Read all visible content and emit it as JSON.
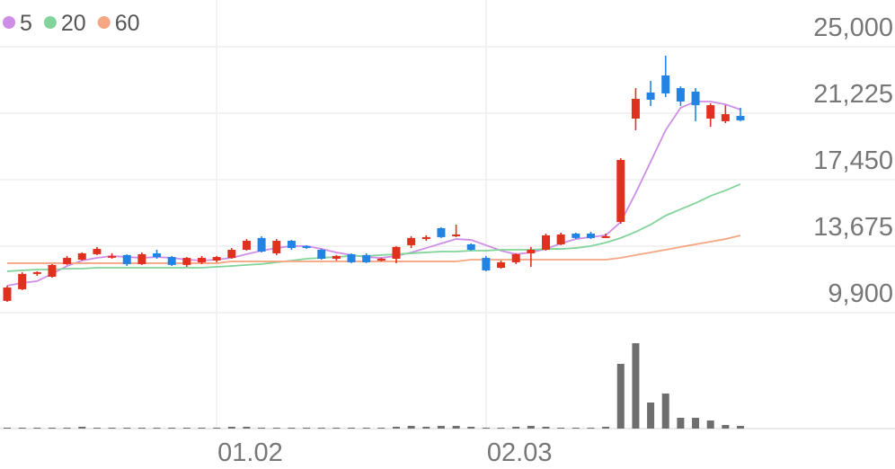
{
  "chart_data": {
    "type": "candlestick",
    "categories": [
      null,
      null,
      null,
      null,
      null,
      null,
      null,
      null,
      null,
      null,
      null,
      null,
      null,
      null,
      "01.02",
      null,
      null,
      null,
      null,
      null,
      null,
      null,
      null,
      null,
      null,
      null,
      null,
      null,
      null,
      null,
      null,
      null,
      "02.03",
      null,
      null,
      null,
      null,
      null,
      null,
      null,
      null,
      null,
      null,
      null,
      null,
      null,
      null,
      null,
      null,
      null
    ],
    "open": [
      10570,
      11230,
      12100,
      11940,
      12660,
      12910,
      13220,
      13060,
      13170,
      12660,
      13270,
      13060,
      12610,
      12760,
      12860,
      13010,
      13470,
      14140,
      13270,
      13980,
      13680,
      13470,
      12960,
      13220,
      13170,
      12860,
      12960,
      13730,
      14080,
      14700,
      14290,
      13780,
      13010,
      12450,
      12760,
      13270,
      13470,
      13780,
      14390,
      14390,
      14190,
      15050,
      20920,
      22400,
      23370,
      22650,
      22450,
      20920,
      20770,
      21070
    ],
    "close": [
      11330,
      12100,
      12200,
      12610,
      13010,
      13270,
      13520,
      13120,
      12660,
      13220,
      13060,
      12610,
      13010,
      13010,
      13060,
      13470,
      13980,
      13370,
      13980,
      13570,
      13570,
      12960,
      13120,
      12760,
      12760,
      12960,
      13630,
      14140,
      14190,
      14190,
      14340,
      13470,
      12300,
      12760,
      13220,
      13470,
      14290,
      14340,
      14140,
      14140,
      14240,
      18570,
      22040,
      21990,
      22350,
      21890,
      21680,
      21680,
      21170,
      20820
    ],
    "high": [
      11430,
      12200,
      12250,
      12660,
      13120,
      13320,
      13630,
      13270,
      13220,
      13320,
      13470,
      13120,
      13060,
      13120,
      13120,
      13570,
      14080,
      14240,
      14080,
      14030,
      13730,
      13520,
      13170,
      13270,
      13270,
      13010,
      13680,
      14240,
      14290,
      14750,
      14900,
      13830,
      13120,
      12860,
      13270,
      13630,
      14390,
      14440,
      14440,
      14490,
      14390,
      18670,
      22650,
      23060,
      24490,
      22750,
      22650,
      21790,
      21680,
      21530
    ],
    "low": [
      10510,
      11180,
      11990,
      11890,
      12610,
      12860,
      13170,
      12960,
      12550,
      12610,
      12960,
      12550,
      12500,
      12660,
      12760,
      12960,
      13420,
      13320,
      13170,
      13470,
      13520,
      12910,
      12860,
      12710,
      12710,
      12810,
      12710,
      13570,
      13980,
      14140,
      14190,
      13420,
      12250,
      12400,
      12660,
      12500,
      13420,
      13730,
      14080,
      14080,
      14140,
      14950,
      20260,
      21630,
      22140,
      21630,
      20770,
      20460,
      20660,
      20770
    ],
    "up_color": "#e0301e",
    "down_color": "#2383e2",
    "volume": [
      1,
      1,
      1,
      1,
      1,
      2,
      1,
      1,
      1,
      1,
      1,
      1,
      1,
      1,
      1,
      2,
      2,
      1,
      1,
      1,
      1,
      1,
      1,
      1,
      1,
      1,
      2,
      3,
      2,
      3,
      3,
      2,
      1,
      1,
      2,
      3,
      2,
      1,
      1,
      1,
      2,
      72,
      95,
      29,
      39,
      12,
      12,
      9,
      4,
      3
    ],
    "volume_color": "#6e6e6e",
    "series": [
      {
        "name": "5",
        "color": "#cf8ee6",
        "values": [
          11430,
          11590,
          11690,
          12100,
          12550,
          12860,
          13010,
          13120,
          13060,
          13010,
          13060,
          13010,
          12910,
          12860,
          12910,
          13010,
          13220,
          13420,
          13570,
          13680,
          13680,
          13520,
          13320,
          13170,
          13060,
          13010,
          13120,
          13320,
          13570,
          13830,
          14080,
          14030,
          13730,
          13420,
          13220,
          13320,
          13520,
          13830,
          14080,
          14190,
          14290,
          15050,
          16690,
          18470,
          20260,
          21530,
          21890,
          21890,
          21730,
          21430
        ]
      },
      {
        "name": "20",
        "color": "#82d49a",
        "values": [
          12250,
          12300,
          12350,
          12350,
          12400,
          12400,
          12450,
          12450,
          12450,
          12450,
          12450,
          12450,
          12450,
          12450,
          12500,
          12550,
          12610,
          12660,
          12760,
          12860,
          12960,
          13010,
          13060,
          13120,
          13120,
          13170,
          13220,
          13270,
          13320,
          13370,
          13370,
          13420,
          13420,
          13470,
          13470,
          13470,
          13520,
          13520,
          13570,
          13680,
          13880,
          14140,
          14490,
          14900,
          15410,
          15770,
          16120,
          16530,
          16840,
          17200
        ]
      },
      {
        "name": "60",
        "color": "#f5a683",
        "values": [
          12710,
          12710,
          12710,
          12710,
          12710,
          12710,
          12710,
          12710,
          12710,
          12710,
          12710,
          12710,
          12710,
          12710,
          12710,
          12810,
          12810,
          12810,
          12810,
          12810,
          12810,
          12810,
          12810,
          12810,
          12810,
          12810,
          12810,
          12810,
          12810,
          12810,
          12810,
          12910,
          12910,
          12910,
          12910,
          12910,
          12910,
          12910,
          12910,
          12910,
          12910,
          13010,
          13170,
          13320,
          13470,
          13630,
          13780,
          13930,
          14080,
          14290
        ]
      }
    ],
    "ylim": [
      9900,
      25000
    ],
    "yticks": [
      {
        "value": 25000,
        "label": "25,000"
      },
      {
        "value": 21225,
        "label": "21,225"
      },
      {
        "value": 17450,
        "label": "17,450"
      },
      {
        "value": 13675,
        "label": "13,675"
      },
      {
        "value": 9900,
        "label": "9,900"
      }
    ],
    "grid": true
  }
}
